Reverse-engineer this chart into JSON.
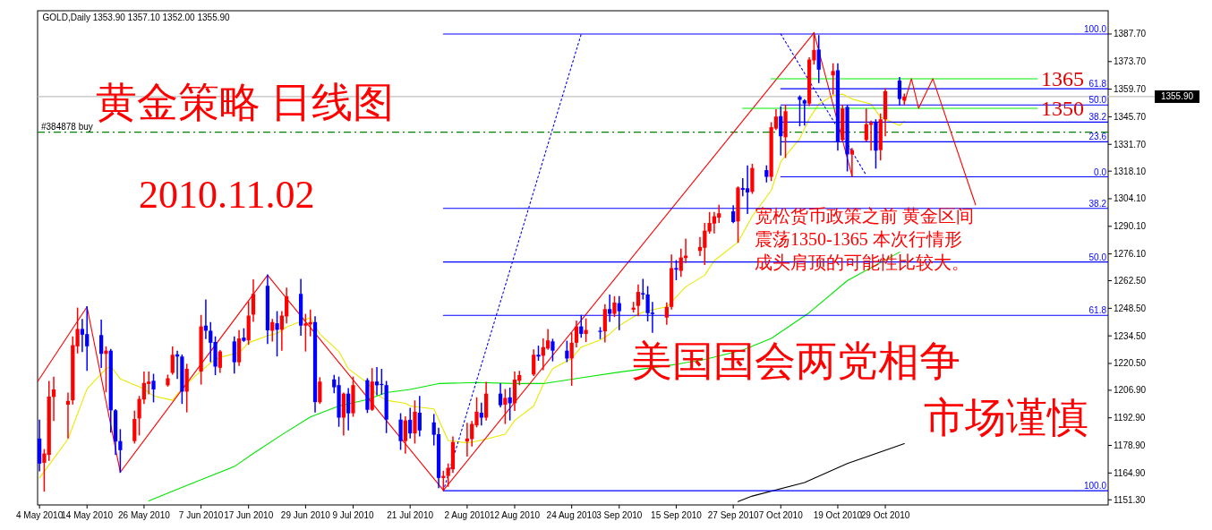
{
  "chart_data": {
    "type": "candlestick",
    "title": "黄金策略 日线图",
    "subtitle": "2010.11.02",
    "annotations": [
      "GOLD,Daily  1353.90 1357.10 1352.00 1355.90",
      "宽松货币政策之前 黄金区间",
      "震荡1350-1365 本次行情形",
      "成头肩顶的可能性比较大。",
      "美国国会两党相争",
      "市场谨慎",
      {
        "text": "1365",
        "x": "2010-11-30",
        "y": 1365
      },
      {
        "text": "1350",
        "x": "2010-11-30",
        "y": 1350
      },
      {
        "text": "100.0",
        "x": "2010-12-14T21:36",
        "y": 1387.7
      },
      {
        "text": "61.8",
        "x": "2010-12-14T21:36",
        "y": 1359.9
      },
      {
        "text": "50.0",
        "x": "2010-12-14T21:36",
        "y": 1351.7
      },
      {
        "text": "38.2",
        "x": "2010-12-14T21:36",
        "y": 1343.0
      },
      {
        "text": "23.6",
        "x": "2010-12-14T21:36",
        "y": 1333.0
      },
      {
        "text": "0.0",
        "x": "2010-12-14T21:36",
        "y": 1315.2
      },
      {
        "text": "38.2",
        "x": "2010-12-14T21:36",
        "y": 1299.2
      },
      {
        "text": "50.0",
        "x": "2010-12-14T21:36",
        "y": 1272.0
      },
      {
        "text": "61.8",
        "x": "2010-12-14T21:36",
        "y": 1244.9
      },
      {
        "text": "100.0",
        "x": "2010-12-14T21:36",
        "y": 1155.9
      }
    ],
    "x": [
      "2010-05-04",
      "2010-05-05",
      "2010-05-06",
      "2010-05-07",
      "2010-05-10",
      "2010-05-11",
      "2010-05-12",
      "2010-05-13",
      "2010-05-14",
      "2010-05-17",
      "2010-05-18",
      "2010-05-19",
      "2010-05-20",
      "2010-05-21",
      "2010-05-24",
      "2010-05-25",
      "2010-05-26",
      "2010-05-27",
      "2010-05-28",
      "2010-05-31",
      "2010-06-01",
      "2010-06-02",
      "2010-06-03",
      "2010-06-04",
      "2010-06-07",
      "2010-06-08",
      "2010-06-09",
      "2010-06-10",
      "2010-06-11",
      "2010-06-14",
      "2010-06-15",
      "2010-06-16",
      "2010-06-17",
      "2010-06-18",
      "2010-06-21",
      "2010-06-22",
      "2010-06-23",
      "2010-06-24",
      "2010-06-25",
      "2010-06-28",
      "2010-06-29",
      "2010-06-30",
      "2010-07-01",
      "2010-07-02",
      "2010-07-05",
      "2010-07-06",
      "2010-07-07",
      "2010-07-08",
      "2010-07-09",
      "2010-07-12",
      "2010-07-13",
      "2010-07-14",
      "2010-07-15",
      "2010-07-16",
      "2010-07-19",
      "2010-07-20",
      "2010-07-21",
      "2010-07-22",
      "2010-07-23",
      "2010-07-26",
      "2010-07-27",
      "2010-07-28",
      "2010-07-29",
      "2010-07-30",
      "2010-08-02",
      "2010-08-03",
      "2010-08-04",
      "2010-08-05",
      "2010-08-06",
      "2010-08-09",
      "2010-08-10",
      "2010-08-11",
      "2010-08-12",
      "2010-08-13",
      "2010-08-16",
      "2010-08-17",
      "2010-08-18",
      "2010-08-19",
      "2010-08-20",
      "2010-08-23",
      "2010-08-24",
      "2010-08-25",
      "2010-08-26",
      "2010-08-27",
      "2010-08-30",
      "2010-08-31",
      "2010-09-01",
      "2010-09-02",
      "2010-09-03",
      "2010-09-06",
      "2010-09-07",
      "2010-09-08",
      "2010-09-09",
      "2010-09-10",
      "2010-09-13",
      "2010-09-14",
      "2010-09-15",
      "2010-09-16",
      "2010-09-17",
      "2010-09-20",
      "2010-09-21",
      "2010-09-22",
      "2010-09-23",
      "2010-09-24",
      "2010-09-27",
      "2010-09-28",
      "2010-09-29",
      "2010-09-30",
      "2010-10-01",
      "2010-10-04",
      "2010-10-05",
      "2010-10-06",
      "2010-10-07",
      "2010-10-08",
      "2010-10-11",
      "2010-10-12",
      "2010-10-13",
      "2010-10-14",
      "2010-10-15",
      "2010-10-18",
      "2010-10-19",
      "2010-10-20",
      "2010-10-21",
      "2010-10-22",
      "2010-10-25",
      "2010-10-26",
      "2010-10-27",
      "2010-10-28",
      "2010-10-29",
      "2010-11-01",
      "2010-11-02"
    ],
    "ohlc": [
      [
        1182.4,
        1191.6,
        1166.1,
        1169.7
      ],
      [
        1170.1,
        1176.7,
        1155.8,
        1174.8
      ],
      [
        1174.1,
        1211.3,
        1171.4,
        1203.7
      ],
      [
        1203.5,
        1213.5,
        1191.6,
        1207.3
      ],
      [
        1199.6,
        1205.4,
        1182.8,
        1201.5
      ],
      [
        1201.8,
        1233.9,
        1200.0,
        1229.8
      ],
      [
        1229.2,
        1248.5,
        1225.9,
        1238.0
      ],
      [
        1238.0,
        1242.7,
        1226.6,
        1235.1
      ],
      [
        1235.4,
        1249.2,
        1217.1,
        1229.2
      ],
      [
        1234.9,
        1242.4,
        1218.6,
        1225.4
      ],
      [
        1225.4,
        1228.8,
        1206.2,
        1227.0
      ],
      [
        1227.0,
        1227.5,
        1185.7,
        1196.7
      ],
      [
        1196.7,
        1197.0,
        1174.4,
        1180.9
      ],
      [
        1181.1,
        1186.8,
        1165.3,
        1176.5
      ],
      [
        1181.1,
        1196.2,
        1180.2,
        1192.3
      ],
      [
        1192.6,
        1203.7,
        1184.3,
        1202.5
      ],
      [
        1202.2,
        1216.1,
        1200.3,
        1210.6
      ],
      [
        1210.1,
        1216.1,
        1205.2,
        1211.3
      ],
      [
        1211.7,
        1214.9,
        1201.1,
        1207.3
      ],
      [
        1209.4,
        1214.5,
        1209.1,
        1213.0
      ],
      [
        1215.7,
        1228.8,
        1215.2,
        1224.9
      ],
      [
        1225.1,
        1226.6,
        1213.0,
        1224.0
      ],
      [
        1224.0,
        1224.7,
        1200.3,
        1206.2
      ],
      [
        1206.2,
        1220.0,
        1196.0,
        1217.8
      ],
      [
        1216.4,
        1244.8,
        1210.1,
        1239.3
      ],
      [
        1239.7,
        1252.6,
        1233.2,
        1237.1
      ],
      [
        1237.1,
        1241.2,
        1221.5,
        1231.0
      ],
      [
        1231.4,
        1233.9,
        1214.9,
        1218.9
      ],
      [
        1218.3,
        1227.0,
        1216.1,
        1226.6
      ],
      [
        1231.7,
        1233.9,
        1215.7,
        1221.1
      ],
      [
        1221.1,
        1237.1,
        1219.6,
        1233.2
      ],
      [
        1233.6,
        1238.0,
        1231.8,
        1232.0
      ],
      [
        1232.2,
        1251.7,
        1230.3,
        1244.8
      ],
      [
        1245.3,
        1262.8,
        1241.9,
        1255.8
      ],
      [
        1259.9,
        1265.3,
        1230.7,
        1237.3
      ],
      [
        1237.1,
        1242.7,
        1232.0,
        1241.5
      ],
      [
        1240.9,
        1246.7,
        1224.4,
        1237.6
      ],
      [
        1237.6,
        1246.7,
        1227.3,
        1244.8
      ],
      [
        1244.4,
        1258.7,
        1241.2,
        1254.6
      ],
      [
        1255.8,
        1263.1,
        1234.9,
        1239.7
      ],
      [
        1239.7,
        1245.3,
        1226.9,
        1240.8
      ],
      [
        1240.3,
        1247.5,
        1234.6,
        1241.5
      ],
      [
        1241.5,
        1244.1,
        1196.0,
        1200.9
      ],
      [
        1200.8,
        1213.2,
        1200.3,
        1211.3
      ],
      [
        1212.4,
        1214.3,
        1205.7,
        1208.4
      ],
      [
        1209.5,
        1213.5,
        1188.7,
        1193.0
      ],
      [
        1193.0,
        1205.4,
        1184.3,
        1205.2
      ],
      [
        1205.2,
        1207.6,
        1186.9,
        1195.2
      ],
      [
        1195.2,
        1213.5,
        1193.8,
        1209.5
      ],
      [
        1212.0,
        1212.7,
        1195.7,
        1197.0
      ],
      [
        1197.0,
        1217.8,
        1196.8,
        1211.3
      ],
      [
        1211.3,
        1218.3,
        1204.7,
        1209.4
      ],
      [
        1210.1,
        1217.4,
        1205.0,
        1210.0
      ],
      [
        1209.5,
        1211.3,
        1185.5,
        1192.0
      ],
      [
        1192.0,
        1194.9,
        1177.0,
        1181.1
      ],
      [
        1181.1,
        1193.3,
        1175.1,
        1191.6
      ],
      [
        1191.9,
        1197.7,
        1182.8,
        1185.0
      ],
      [
        1185.0,
        1201.4,
        1180.2,
        1196.0
      ],
      [
        1195.5,
        1203.7,
        1183.8,
        1186.5
      ],
      [
        1190.6,
        1194.5,
        1179.2,
        1184.3
      ],
      [
        1184.6,
        1187.5,
        1157.6,
        1162.4
      ],
      [
        1162.4,
        1165.7,
        1156.1,
        1163.4
      ],
      [
        1163.4,
        1169.4,
        1158.3,
        1167.5
      ],
      [
        1166.8,
        1183.1,
        1165.3,
        1180.6
      ],
      [
        1180.9,
        1190.1,
        1173.6,
        1182.4
      ],
      [
        1182.1,
        1190.9,
        1178.7,
        1189.8
      ],
      [
        1189.1,
        1203.0,
        1188.4,
        1196.0
      ],
      [
        1195.5,
        1200.3,
        1189.4,
        1193.0
      ],
      [
        1193.0,
        1210.8,
        1191.9,
        1205.2
      ],
      [
        1205.2,
        1210.1,
        1198.6,
        1199.3
      ],
      [
        1199.6,
        1207.2,
        1190.1,
        1203.0
      ],
      [
        1203.3,
        1207.9,
        1191.9,
        1200.3
      ],
      [
        1200.3,
        1216.1,
        1196.7,
        1212.3
      ],
      [
        1211.7,
        1216.4,
        1209.8,
        1214.6
      ],
      [
        1214.9,
        1227.3,
        1214.5,
        1224.9
      ],
      [
        1224.9,
        1229.2,
        1222.2,
        1224.0
      ],
      [
        1224.4,
        1232.9,
        1217.4,
        1228.8
      ],
      [
        1228.1,
        1237.6,
        1227.8,
        1232.2
      ],
      [
        1231.7,
        1232.7,
        1221.9,
        1227.0
      ],
      [
        1227.0,
        1231.7,
        1221.5,
        1223.0
      ],
      [
        1223.0,
        1235.8,
        1209.5,
        1231.0
      ],
      [
        1231.0,
        1241.9,
        1229.0,
        1239.3
      ],
      [
        1239.3,
        1244.8,
        1233.9,
        1235.5
      ],
      [
        1235.5,
        1243.0,
        1231.7,
        1237.5
      ],
      [
        1237.1,
        1238.6,
        1233.2,
        1236.5
      ],
      [
        1236.8,
        1250.2,
        1231.5,
        1248.1
      ],
      [
        1248.1,
        1255.1,
        1241.9,
        1245.7
      ],
      [
        1245.7,
        1254.3,
        1244.4,
        1251.4
      ],
      [
        1251.1,
        1254.3,
        1237.8,
        1247.0
      ],
      [
        1247.8,
        1251.4,
        1246.7,
        1248.8
      ],
      [
        1249.7,
        1260.2,
        1244.8,
        1256.8
      ],
      [
        1256.2,
        1263.1,
        1253.3,
        1255.5
      ],
      [
        1255.5,
        1259.4,
        1242.2,
        1246.0
      ],
      [
        1246.3,
        1251.4,
        1236.4,
        1245.6
      ],
      [
        1243.8,
        1251.1,
        1240.5,
        1249.2
      ],
      [
        1249.2,
        1275.5,
        1248.2,
        1268.9
      ],
      [
        1268.9,
        1272.6,
        1263.1,
        1268.1
      ],
      [
        1267.5,
        1278.4,
        1264.8,
        1274.3
      ],
      [
        1274.0,
        1283.5,
        1271.8,
        1275.2
      ],
      [
        1277.6,
        1284.3,
        1275.4,
        1279.6
      ],
      [
        1279.2,
        1291.5,
        1270.8,
        1287.9
      ],
      [
        1287.5,
        1297.0,
        1286.7,
        1291.8
      ],
      [
        1291.5,
        1297.0,
        1286.8,
        1295.2
      ],
      [
        1294.5,
        1300.7,
        1292.2,
        1296.7
      ],
      [
        1297.7,
        1300.5,
        1292.1,
        1292.3
      ],
      [
        1292.6,
        1310.0,
        1282.1,
        1309.8
      ],
      [
        1309.5,
        1314.2,
        1305.7,
        1308.6
      ],
      [
        1309.4,
        1320.7,
        1296.7,
        1307.3
      ],
      [
        1307.6,
        1321.5,
        1306.9,
        1319.7
      ],
      [
        1318.6,
        1320.7,
        1312.7,
        1315.2
      ],
      [
        1315.2,
        1342.6,
        1313.4,
        1340.4
      ],
      [
        1339.7,
        1349.2,
        1339.3,
        1345.8
      ],
      [
        1346.0,
        1350.7,
        1326.3,
        1335.8
      ],
      [
        1335.3,
        1351.4,
        1325.1,
        1348.5
      ],
      [
        1355.8,
        1356.2,
        1341.2,
        1354.3
      ],
      [
        1354.0,
        1354.3,
        1341.6,
        1352.4
      ],
      [
        1352.4,
        1375.5,
        1351.4,
        1374.7
      ],
      [
        1374.3,
        1388.3,
        1372.5,
        1379.6
      ],
      [
        1379.8,
        1386.8,
        1363.1,
        1369.6
      ],
      [
        1366.7,
        1372.5,
        1357.3,
        1368.9
      ],
      [
        1369.3,
        1372.5,
        1328.8,
        1333.1
      ],
      [
        1333.9,
        1351.4,
        1333.2,
        1349.9
      ],
      [
        1350.7,
        1351.4,
        1318.3,
        1326.6
      ],
      [
        1326.6,
        1329.5,
        1315.6,
        1328.8
      ],
      [
        1333.9,
        1349.5,
        1333.5,
        1341.9
      ],
      [
        1341.6,
        1343.4,
        1328.8,
        1342.6
      ],
      [
        1342.9,
        1344.1,
        1319.7,
        1328.5
      ],
      [
        1328.8,
        1347.0,
        1323.9,
        1344.4
      ],
      [
        1344.4,
        1359.7,
        1336.1,
        1358.7
      ],
      [
        1364.1,
        1365.5,
        1351.8,
        1354.7
      ],
      [
        1353.9,
        1357.1,
        1352.0,
        1355.9
      ]
    ],
    "colors": [
      "#0000ff",
      "#ff0000",
      "#ff0000",
      "#ff0000",
      "#ff0000",
      "#ff0000",
      "#ff0000",
      "#0000ff",
      "#0000ff",
      "#0000ff",
      "#ff0000",
      "#0000ff",
      "#0000ff",
      "#0000ff",
      "#ff0000",
      "#ff0000",
      "#ff0000",
      "#ff0000",
      "#0000ff",
      "#ff0000",
      "#ff0000",
      "#0000ff",
      "#0000ff",
      "#ff0000",
      "#ff0000",
      "#0000ff",
      "#0000ff",
      "#0000ff",
      "#ff0000",
      "#0000ff",
      "#ff0000",
      "#0000ff",
      "#ff0000",
      "#ff0000",
      "#0000ff",
      "#ff0000",
      "#0000ff",
      "#ff0000",
      "#ff0000",
      "#0000ff",
      "#ff0000",
      "#ff0000",
      "#0000ff",
      "#ff0000",
      "#0000ff",
      "#0000ff",
      "#ff0000",
      "#0000ff",
      "#ff0000",
      "#0000ff",
      "#ff0000",
      "#0000ff",
      "#0000ff",
      "#0000ff",
      "#0000ff",
      "#ff0000",
      "#0000ff",
      "#ff0000",
      "#0000ff",
      "#0000ff",
      "#0000ff",
      "#ff0000",
      "#ff0000",
      "#ff0000",
      "#ff0000",
      "#ff0000",
      "#ff0000",
      "#0000ff",
      "#ff0000",
      "#0000ff",
      "#ff0000",
      "#0000ff",
      "#ff0000",
      "#ff0000",
      "#ff0000",
      "#0000ff",
      "#ff0000",
      "#ff0000",
      "#0000ff",
      "#0000ff",
      "#ff0000",
      "#ff0000",
      "#0000ff",
      "#ff0000",
      "#0000ff",
      "#ff0000",
      "#0000ff",
      "#ff0000",
      "#0000ff",
      "#ff0000",
      "#ff0000",
      "#0000ff",
      "#0000ff",
      "#0000ff",
      "#ff0000",
      "#ff0000",
      "#0000ff",
      "#ff0000",
      "#ff0000",
      "#ff0000",
      "#ff0000",
      "#ff0000",
      "#ff0000",
      "#ff0000",
      "#0000ff",
      "#ff0000",
      "#0000ff",
      "#0000ff",
      "#ff0000",
      "#0000ff",
      "#ff0000",
      "#ff0000",
      "#0000ff",
      "#ff0000",
      "#0000ff",
      "#0000ff",
      "#ff0000",
      "#ff0000",
      "#0000ff",
      "#ff0000",
      "#0000ff",
      "#ff0000",
      "#0000ff",
      "#ff0000",
      "#ff0000",
      "#ff0000",
      "#0000ff",
      "#ff0000",
      "#ff0000",
      "#0000ff",
      "#ff0000"
    ],
    "series": [
      {
        "type": "line",
        "color": "#e8e800",
        "x": [
          "2010-05-04",
          "2010-05-10",
          "2010-05-14",
          "2010-05-18",
          "2010-05-19",
          "2010-05-21",
          "2010-05-26",
          "2010-05-28",
          "2010-06-01",
          "2010-06-03",
          "2010-06-07",
          "2010-06-09",
          "2010-06-11",
          "2010-06-15",
          "2010-06-17",
          "2010-06-21",
          "2010-06-23",
          "2010-06-25",
          "2010-06-29",
          "2010-06-30",
          "2010-07-02",
          "2010-07-06",
          "2010-07-08",
          "2010-07-12",
          "2010-07-14",
          "2010-07-16",
          "2010-07-20",
          "2010-07-21",
          "2010-07-26",
          "2010-07-29",
          "2010-08-02",
          "2010-08-04",
          "2010-08-06",
          "2010-08-10",
          "2010-08-12",
          "2010-08-16",
          "2010-08-18",
          "2010-08-20",
          "2010-08-24",
          "2010-08-26",
          "2010-08-30",
          "2010-09-01",
          "2010-09-03",
          "2010-09-07",
          "2010-09-09",
          "2010-09-13",
          "2010-09-15",
          "2010-09-17",
          "2010-09-21",
          "2010-09-23",
          "2010-09-28",
          "2010-10-01",
          "2010-10-05",
          "2010-10-07",
          "2010-10-11",
          "2010-10-13",
          "2010-10-15",
          "2010-10-18",
          "2010-10-20",
          "2010-10-22",
          "2010-10-26",
          "2010-10-28",
          "2010-11-01",
          "2010-11-02"
        ],
        "values": [
          1162.4,
          1182.1,
          1207.6,
          1217.8,
          1219.0,
          1212.7,
          1207.6,
          1204.0,
          1201.8,
          1207.9,
          1216.7,
          1220.8,
          1223.7,
          1225.9,
          1231.0,
          1234.6,
          1235.7,
          1239.0,
          1242.7,
          1243.8,
          1235.4,
          1226.6,
          1217.8,
          1210.6,
          1204.7,
          1201.8,
          1200.3,
          1198.9,
          1197.4,
          1181.4,
          1180.2,
          1181.1,
          1182.1,
          1184.6,
          1191.6,
          1198.9,
          1209.8,
          1217.9,
          1223.0,
          1228.8,
          1232.4,
          1235.4,
          1239.7,
          1245.6,
          1247.3,
          1249.2,
          1254.3,
          1259.4,
          1265.3,
          1272.6,
          1282.1,
          1295.2,
          1308.3,
          1322.9,
          1334.6,
          1344.8,
          1352.1,
          1356.5,
          1357.2,
          1354.7,
          1352.1,
          1345.5,
          1341.2,
          1343.4
        ]
      },
      {
        "type": "line",
        "color": "#00e600",
        "x": [
          "2010-05-27",
          "2010-06-02",
          "2010-06-08",
          "2010-06-14",
          "2010-06-18",
          "2010-06-24",
          "2010-06-30",
          "2010-07-06",
          "2010-07-12",
          "2010-07-16",
          "2010-07-21",
          "2010-07-27",
          "2010-08-04",
          "2010-08-12",
          "2010-08-18",
          "2010-08-26",
          "2010-09-03",
          "2010-09-13",
          "2010-09-21",
          "2010-09-29",
          "2010-10-05",
          "2010-10-13",
          "2010-10-21",
          "2010-11-01"
        ],
        "values": [
          1150.7,
          1156.7,
          1162.4,
          1168.2,
          1174.8,
          1184.3,
          1193.3,
          1198.9,
          1202.2,
          1205.7,
          1207.3,
          1210.3,
          1210.8,
          1210.3,
          1210.3,
          1213.2,
          1216.1,
          1219.3,
          1222.5,
          1227.3,
          1233.2,
          1246.3,
          1262.5,
          1277.0
        ]
      },
      {
        "type": "line",
        "color": "#000000",
        "x": [
          "2010-09-28",
          "2010-10-01",
          "2010-10-12",
          "2010-10-21",
          "2010-11-02"
        ],
        "values": [
          1150.4,
          1153.2,
          1160.1,
          1169.7,
          1179.8
        ]
      },
      {
        "type": "line",
        "color": "#ff0000",
        "x": [
          "2010-05-03T14:24",
          "2010-05-14",
          "2010-05-21",
          "2010-06-21",
          "2010-07-28",
          "2010-10-14",
          "2010-10-22"
        ],
        "values": [
          1211.3,
          1249.2,
          1165.3,
          1265.3,
          1156.1,
          1388.3,
          1315.6
        ]
      },
      {
        "type": "line",
        "color": "#0000ff",
        "line_style": "dotted",
        "x": [
          "2010-07-28",
          "2010-08-26"
        ],
        "values": [
          1155.9,
          1387.7
        ]
      },
      {
        "type": "line",
        "color": "#0000ff",
        "line_style": "dotted",
        "x": [
          "2010-10-07",
          "2010-10-25"
        ],
        "values": [
          1387.7,
          1316.0
        ]
      },
      {
        "type": "line",
        "color": "#0000ff",
        "x": [
          "2010-07-28",
          "2010-12-14T21:36"
        ],
        "values": [
          1387.7,
          1387.7
        ]
      },
      {
        "type": "line",
        "color": "#0000ff",
        "x": [
          "2010-10-07",
          "2010-12-14T21:36"
        ],
        "values": [
          1359.9,
          1359.9
        ]
      },
      {
        "type": "line",
        "color": "#0000ff",
        "x": [
          "2010-10-07",
          "2010-12-14T21:36"
        ],
        "values": [
          1351.7,
          1351.7
        ]
      },
      {
        "type": "line",
        "color": "#0000ff",
        "x": [
          "2010-10-07",
          "2010-12-14T21:36"
        ],
        "values": [
          1343.0,
          1343.0
        ]
      },
      {
        "type": "line",
        "color": "#0000ff",
        "x": [
          "2010-10-07",
          "2010-12-14T21:36"
        ],
        "values": [
          1333.0,
          1333.0
        ]
      },
      {
        "type": "line",
        "color": "#0000ff",
        "x": [
          "2010-10-07",
          "2010-12-14T21:36"
        ],
        "values": [
          1315.2,
          1315.2
        ]
      },
      {
        "type": "line",
        "color": "#0000ff",
        "x": [
          "2010-07-28",
          "2010-12-14T21:36"
        ],
        "values": [
          1299.2,
          1299.2
        ]
      },
      {
        "type": "line",
        "color": "#0000ff",
        "x": [
          "2010-07-28",
          "2010-12-14T21:36"
        ],
        "values": [
          1272.0,
          1272.0
        ]
      },
      {
        "type": "line",
        "color": "#0000ff",
        "x": [
          "2010-07-28",
          "2010-12-14T21:36"
        ],
        "values": [
          1244.9,
          1244.9
        ]
      },
      {
        "type": "line",
        "color": "#0000ff",
        "x": [
          "2010-07-28",
          "2010-12-14T21:36"
        ],
        "values": [
          1155.9,
          1155.9
        ]
      },
      {
        "type": "line",
        "color": "#00ee00",
        "x": [
          "2010-10-05",
          "2010-11-30"
        ],
        "values": [
          1365,
          1365
        ]
      },
      {
        "type": "line",
        "color": "#00ee00",
        "x": [
          "2010-09-29",
          "2010-11-30"
        ],
        "values": [
          1350,
          1350
        ]
      },
      {
        "type": "line",
        "color": "#ff0000",
        "x": [
          "2010-11-02",
          "2010-11-03T12:00",
          "2010-11-05",
          "2010-11-08",
          "2010-11-17"
        ],
        "values": [
          1352.8,
          1365,
          1350,
          1365,
          1301
        ]
      }
    ],
    "ref_lines": [
      {
        "axis": "y",
        "value": 1337.9,
        "label": "#384878 buy",
        "color": "#008000",
        "line_style": "dashed"
      },
      {
        "axis": "y",
        "value": 1355.9,
        "label": "1355.90",
        "color": "#c0c0c0"
      }
    ],
    "xlim": [
      "2010-05-03T14:24",
      "2010-12-14T21:36"
    ],
    "ylim": [
      1148.7,
      1399.5
    ],
    "xticks": [
      {
        "value": "2010-05-04",
        "label": "4 May 2010"
      },
      {
        "value": "2010-05-14",
        "label": "14 May 2010"
      },
      {
        "value": "2010-05-26",
        "label": "26 May 2010"
      },
      {
        "value": "2010-06-07",
        "label": "7 Jun 2010"
      },
      {
        "value": "2010-06-17",
        "label": "17 Jun 2010"
      },
      {
        "value": "2010-06-29",
        "label": "29 Jun 2010"
      },
      {
        "value": "2010-07-09",
        "label": "9 Jul 2010"
      },
      {
        "value": "2010-07-21",
        "label": "21 Jul 2010"
      },
      {
        "value": "2010-08-02",
        "label": "2 Aug 2010"
      },
      {
        "value": "2010-08-12",
        "label": "12 Aug 2010"
      },
      {
        "value": "2010-08-24",
        "label": "24 Aug 2010"
      },
      {
        "value": "2010-09-03",
        "label": "3 Sep 2010"
      },
      {
        "value": "2010-09-15",
        "label": "15 Sep 2010"
      },
      {
        "value": "2010-09-27",
        "label": "27 Sep 2010"
      },
      {
        "value": "2010-10-07",
        "label": "7 Oct 2010"
      },
      {
        "value": "2010-10-19",
        "label": "19 Oct 2010"
      },
      {
        "value": "2010-10-29",
        "label": "29 Oct 2010"
      }
    ],
    "yticks": [
      {
        "value": 1151.3,
        "label": "1151.30"
      },
      {
        "value": 1164.9,
        "label": "1164.90"
      },
      {
        "value": 1178.9,
        "label": "1178.90"
      },
      {
        "value": 1192.9,
        "label": "1192.90"
      },
      {
        "value": 1206.9,
        "label": "1206.90"
      },
      {
        "value": 1220.5,
        "label": "1220.50"
      },
      {
        "value": 1234.5,
        "label": "1234.50"
      },
      {
        "value": 1248.5,
        "label": "1248.50"
      },
      {
        "value": 1262.5,
        "label": "1262.50"
      },
      {
        "value": 1276.1,
        "label": "1276.10"
      },
      {
        "value": 1290.1,
        "label": "1290.10"
      },
      {
        "value": 1304.1,
        "label": "1304.10"
      },
      {
        "value": 1318.1,
        "label": "1318.10"
      },
      {
        "value": 1331.7,
        "label": "1331.70"
      },
      {
        "value": 1345.7,
        "label": "1345.70"
      },
      {
        "value": 1359.7,
        "label": "1359.70"
      },
      {
        "value": 1373.7,
        "label": "1373.70"
      },
      {
        "value": 1387.7,
        "label": "1387.70"
      }
    ]
  }
}
